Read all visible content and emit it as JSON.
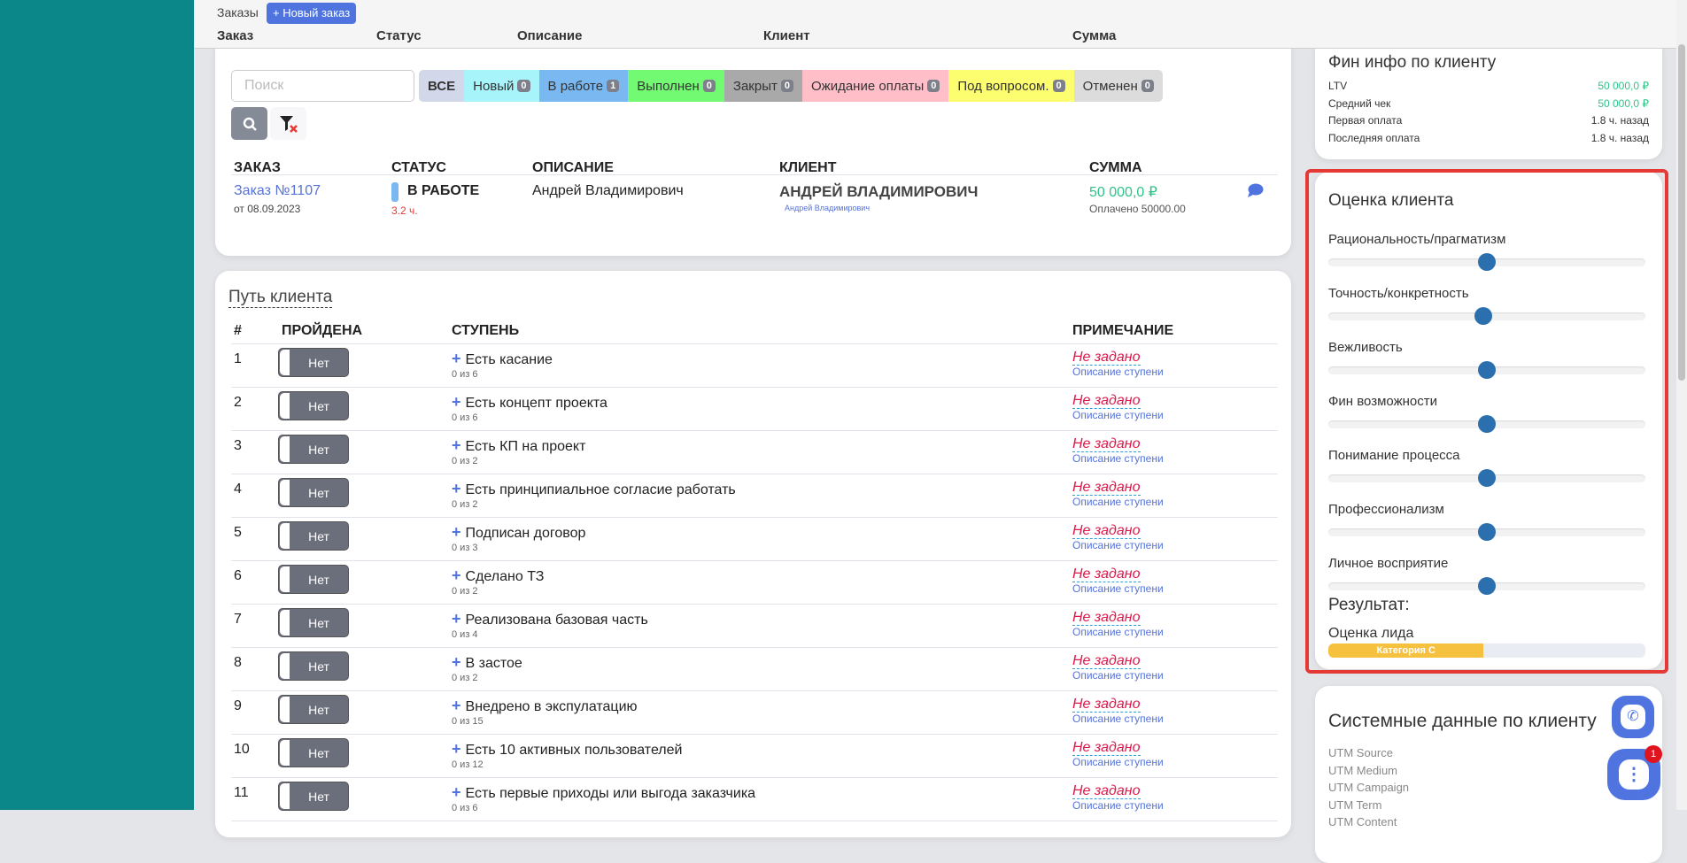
{
  "topbar": {
    "section": "Заказы",
    "new_order": "Новый заказ",
    "columns": [
      "Заказ",
      "Статус",
      "Описание",
      "Клиент",
      "Сумма"
    ]
  },
  "orders": {
    "search_placeholder": "Поиск",
    "tabs": [
      {
        "label": "ВСЕ",
        "count": null,
        "color": "#d3d7ea"
      },
      {
        "label": "Новый",
        "count": "0",
        "color": "#a8f4fb"
      },
      {
        "label": "В работе",
        "count": "1",
        "color": "#7ab8f2"
      },
      {
        "label": "Выполнен",
        "count": "0",
        "color": "#72fb72"
      },
      {
        "label": "Закрыт",
        "count": "0",
        "color": "#a9a9a9"
      },
      {
        "label": "Ожидание оплаты",
        "count": "0",
        "color": "#ffbec8"
      },
      {
        "label": "Под вопросом.",
        "count": "0",
        "color": "#fdfd70"
      },
      {
        "label": "Отменен",
        "count": "0",
        "color": "#dcdcdc"
      }
    ],
    "headers": [
      "ЗАКАЗ",
      "СТАТУС",
      "ОПИСАНИЕ",
      "КЛИЕНТ",
      "СУММА"
    ],
    "row": {
      "order": "Заказ №1107",
      "date": "от 08.09.2023",
      "status": "В РАБОТЕ",
      "status_time": "3.2 ч.",
      "description": "Андрей Владимирович",
      "client": "АНДРЕЙ ВЛАДИМИРОВИЧ",
      "client_sub": "Андрей Владимирович",
      "sum": "50 000,0 ₽",
      "paid": "Оплачено 50000.00"
    }
  },
  "path": {
    "title": "Путь клиента",
    "headers": [
      "#",
      "ПРОЙДЕНА",
      "СТУПЕНЬ",
      "ПРИМЕЧАНИЕ"
    ],
    "toggle_label": "Нет",
    "note": "Не задано",
    "note_sub": "Описание ступени",
    "steps": [
      {
        "n": "1",
        "name": "Есть касание",
        "progress": "0 из 6"
      },
      {
        "n": "2",
        "name": "Есть концепт проекта",
        "progress": "0 из 6"
      },
      {
        "n": "3",
        "name": "Есть КП на проект",
        "progress": "0 из 2"
      },
      {
        "n": "4",
        "name": "Есть принципиальное согласие работать",
        "progress": "0 из 2"
      },
      {
        "n": "5",
        "name": "Подписан договор",
        "progress": "0 из 3"
      },
      {
        "n": "6",
        "name": "Сделано ТЗ",
        "progress": "0 из 2"
      },
      {
        "n": "7",
        "name": "Реализована базовая часть",
        "progress": "0 из 4"
      },
      {
        "n": "8",
        "name": "В застое",
        "progress": "0 из 2"
      },
      {
        "n": "9",
        "name": "Внедрено в экспулатацию",
        "progress": "0 из 15"
      },
      {
        "n": "10",
        "name": "Есть 10 активных пользователей",
        "progress": "0 из 12"
      },
      {
        "n": "11",
        "name": "Есть первые приходы или выгода заказчика",
        "progress": "0 из 6"
      }
    ]
  },
  "fin": {
    "title": "Фин инфо по клиенту",
    "rows": [
      {
        "k": "LTV",
        "v": "50 000,0 ₽",
        "green": true
      },
      {
        "k": "Средний чек",
        "v": "50 000,0 ₽",
        "green": true
      },
      {
        "k": "Первая оплата",
        "v": "1.8 ч. назад"
      },
      {
        "k": "Последняя оплата",
        "v": "1.8 ч. назад"
      }
    ]
  },
  "rating": {
    "title": "Оценка клиента",
    "sliders": [
      {
        "label": "Рационально­сть/прагматизм",
        "value": 50
      },
      {
        "label": "Точность/конкретность",
        "value": 49
      },
      {
        "label": "Вежливость",
        "value": 50
      },
      {
        "label": "Фин возможности",
        "value": 50
      },
      {
        "label": "Понимание процесса",
        "value": 50
      },
      {
        "label": "Профессионализм",
        "value": 50
      },
      {
        "label": "Личное восприятие",
        "value": 50
      }
    ],
    "result_label": "Результат:",
    "lead_label": "Оценка лида",
    "lead_category": "Категория C",
    "lead_percent": 49
  },
  "sys": {
    "title": "Системные данные по клиенту",
    "rows": [
      "UTM Source",
      "UTM Medium",
      "UTM Campaign",
      "UTM Term",
      "UTM Content"
    ]
  },
  "chat_badge": "1"
}
